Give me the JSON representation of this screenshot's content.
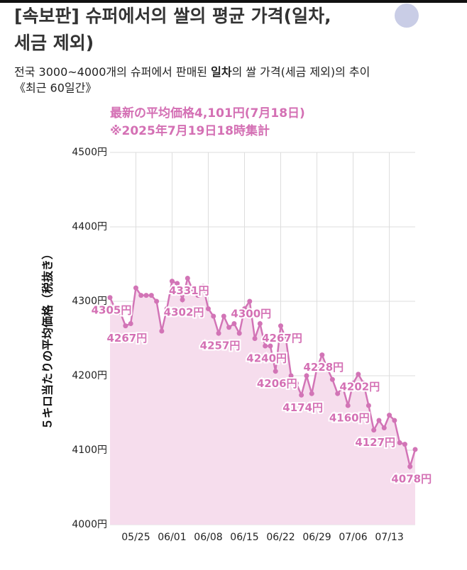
{
  "chart_data": {
    "type": "area",
    "title": [
      "[속보판] 슈퍼에서의 쌀의 평균 가격(일차,",
      "세금 제외)"
    ],
    "subtitle": [
      "전국 3000~4000개의 슈퍼에서 판매된 ",
      "일차",
      "의 쌀 가격(세금 제외)의 추이",
      "《최근 60일간》"
    ],
    "annotations": [
      "最新の平均価格4,101円(7月18日)",
      "※2025年7月19日18時集計"
    ],
    "y_label": "５キロ当たりの平均価格（税抜き）",
    "categories": [
      null,
      null,
      null,
      null,
      null,
      "05/25",
      null,
      null,
      null,
      null,
      null,
      null,
      "06/01",
      null,
      null,
      null,
      null,
      null,
      null,
      "06/08",
      null,
      null,
      null,
      null,
      null,
      null,
      "06/15",
      null,
      null,
      null,
      null,
      null,
      null,
      "06/22",
      null,
      null,
      null,
      null,
      null,
      null,
      "06/29",
      null,
      null,
      null,
      null,
      null,
      null,
      "07/06",
      null,
      null,
      null,
      null,
      null,
      null,
      "07/13",
      null,
      null,
      null,
      null,
      null
    ],
    "values": [
      4305,
      4290,
      4285,
      4267,
      4270,
      4318,
      4308,
      4308,
      4308,
      4300,
      4260,
      4290,
      4327,
      4324,
      4302,
      4331,
      4315,
      4308,
      4320,
      4290,
      4280,
      4257,
      4280,
      4265,
      4270,
      4257,
      4290,
      4300,
      4250,
      4270,
      4240,
      4240,
      4206,
      4267,
      4250,
      4200,
      4190,
      4174,
      4200,
      4176,
      4210,
      4228,
      4210,
      4195,
      4176,
      4185,
      4160,
      4190,
      4202,
      4190,
      4160,
      4127,
      4140,
      4130,
      4147,
      4140,
      4110,
      4108,
      4078,
      4101
    ],
    "value_labels": [
      "4305円",
      null,
      null,
      "4267円",
      null,
      null,
      null,
      null,
      null,
      null,
      null,
      null,
      null,
      null,
      "4302円",
      "4331円",
      null,
      null,
      null,
      null,
      null,
      "4257円",
      null,
      null,
      null,
      null,
      null,
      "4300円",
      null,
      null,
      "4240円",
      null,
      "4206円",
      "4267円",
      null,
      null,
      null,
      "4174円",
      null,
      null,
      null,
      "4228円",
      null,
      null,
      null,
      null,
      "4160円",
      null,
      "4202円",
      null,
      null,
      "4127円",
      null,
      null,
      null,
      null,
      null,
      null,
      "4078円",
      null
    ],
    "color": "#d274b6",
    "fill_color": "#f6dded",
    "ylim": [
      4000,
      4500
    ],
    "yticks": [
      {
        "value": 4000,
        "label": "4000円"
      },
      {
        "value": 4100,
        "label": "4100円"
      },
      {
        "value": 4200,
        "label": "4200円"
      },
      {
        "value": 4300,
        "label": "4300円"
      },
      {
        "value": 4400,
        "label": "4400円"
      },
      {
        "value": 4500,
        "label": "4500円"
      }
    ],
    "grid": true
  }
}
